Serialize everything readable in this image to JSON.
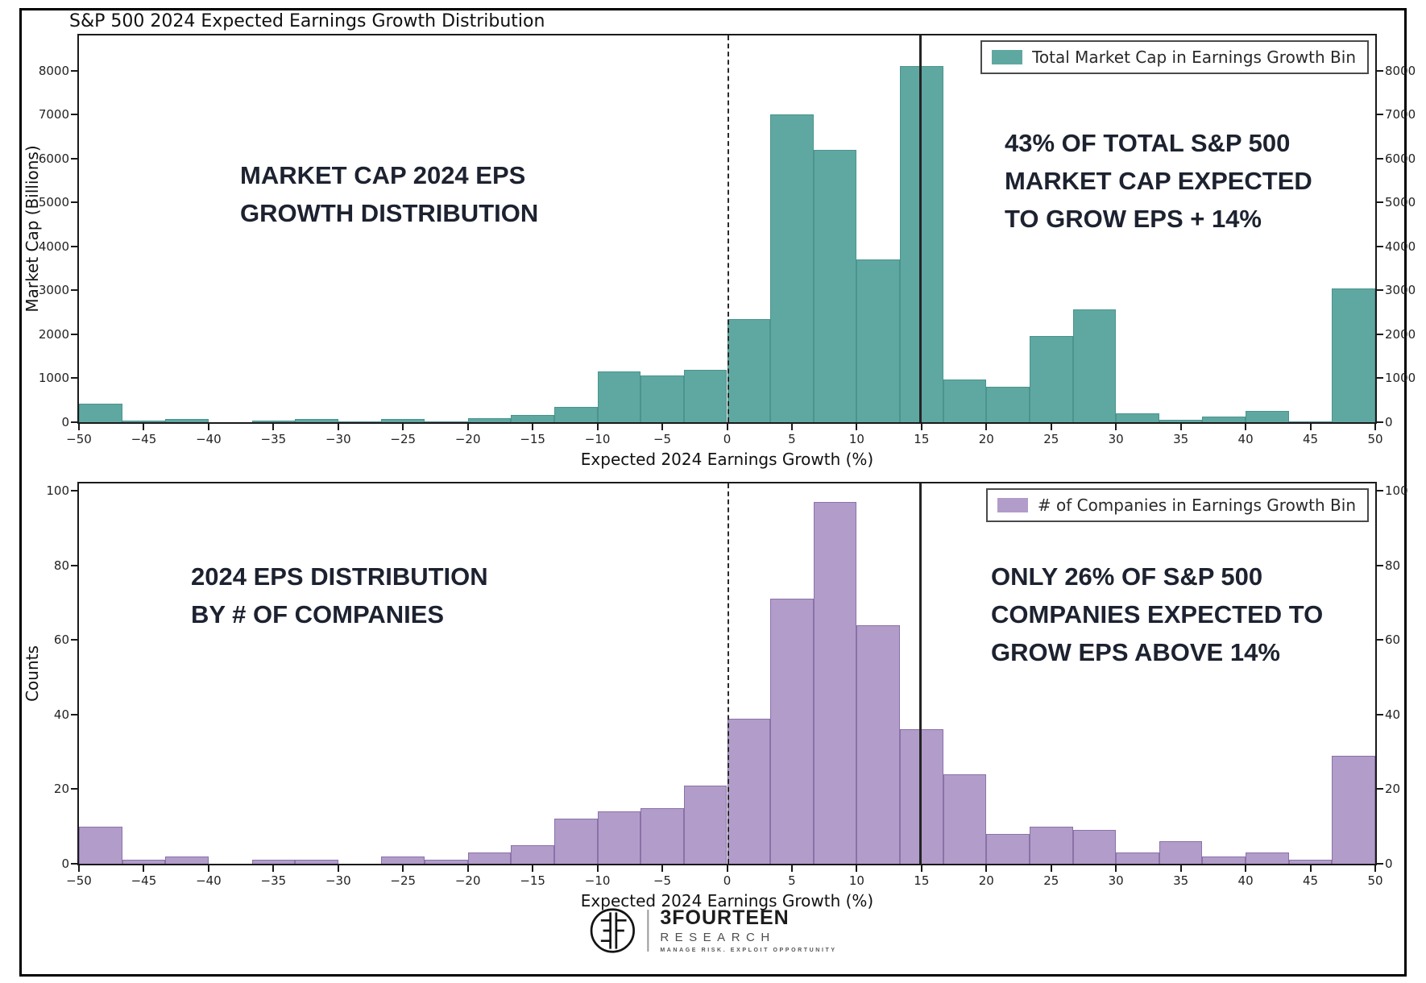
{
  "title": "S&P 500 2024 Expected Earnings Growth Distribution",
  "colors": {
    "teal_fill": "#5fa8a2",
    "teal_edge": "#4a948d",
    "purple_fill": "#b29cca",
    "purple_edge": "#8a72a8",
    "annotation_text": "#1d2230",
    "axis": "#1a1a1a"
  },
  "branding": {
    "logo_monogram": "3F-monogram",
    "logo_main": "3FOURTEEN",
    "logo_sub": "RESEARCH",
    "logo_tagline": "MANAGE RISK. EXPLOIT OPPORTUNITY"
  },
  "chart_data": [
    {
      "type": "bar",
      "subtype": "histogram",
      "title": "Market cap weighted 2024 EPS growth distribution",
      "xlabel": "Expected 2024 Earnings Growth (%)",
      "ylabel": "Market Cap (Billions)",
      "legend": "Total Market Cap in Earnings Growth Bin",
      "legend_position": "upper right",
      "grid": false,
      "bar_color": "#5fa8a2",
      "bar_edge_color": "#4a948d",
      "xlim": [
        -50,
        50
      ],
      "ylim": [
        0,
        8800
      ],
      "xticks": [
        -50,
        -45,
        -40,
        -35,
        -30,
        -25,
        -20,
        -15,
        -10,
        -5,
        0,
        5,
        10,
        15,
        20,
        25,
        30,
        35,
        40,
        45,
        50
      ],
      "yticks": [
        0,
        1000,
        2000,
        3000,
        4000,
        5000,
        6000,
        7000,
        8000
      ],
      "bin_width": 3.333,
      "bin_edges": [
        -50,
        -46.67,
        -43.33,
        -40,
        -36.67,
        -33.33,
        -30,
        -26.67,
        -23.33,
        -20,
        -16.67,
        -13.33,
        -10,
        -6.67,
        -3.33,
        0,
        3.33,
        6.67,
        10,
        13.33,
        16.67,
        20,
        23.33,
        26.67,
        30,
        33.33,
        36.67,
        40,
        43.33,
        46.67,
        50
      ],
      "values": [
        430,
        40,
        70,
        0,
        35,
        65,
        5,
        70,
        15,
        100,
        160,
        350,
        1150,
        1070,
        1200,
        2350,
        7000,
        6200,
        3700,
        8100,
        975,
        800,
        1970,
        2560,
        210,
        60,
        120,
        260,
        20,
        3050
      ],
      "vline_dashed_x": 0,
      "vline_solid_x": 14.8,
      "annotation_left": "MARKET CAP 2024 EPS\nGROWTH DISTRIBUTION",
      "annotation_right": "43% OF TOTAL S&P 500\nMARKET CAP EXPECTED\nTO GROW EPS + 14%"
    },
    {
      "type": "bar",
      "subtype": "histogram",
      "title": "2024 EPS growth distribution by number of companies",
      "xlabel": "Expected 2024 Earnings Growth (%)",
      "ylabel": "Counts",
      "legend": "# of Companies in Earnings Growth Bin",
      "legend_position": "upper right",
      "grid": false,
      "bar_color": "#b29cca",
      "bar_edge_color": "#8a72a8",
      "xlim": [
        -50,
        50
      ],
      "ylim": [
        0,
        102
      ],
      "xticks": [
        -50,
        -45,
        -40,
        -35,
        -30,
        -25,
        -20,
        -15,
        -10,
        -5,
        0,
        5,
        10,
        15,
        20,
        25,
        30,
        35,
        40,
        45,
        50
      ],
      "yticks": [
        0,
        20,
        40,
        60,
        80,
        100
      ],
      "bin_width": 3.333,
      "bin_edges": [
        -50,
        -46.67,
        -43.33,
        -40,
        -36.67,
        -33.33,
        -30,
        -26.67,
        -23.33,
        -20,
        -16.67,
        -13.33,
        -10,
        -6.67,
        -3.33,
        0,
        3.33,
        6.67,
        10,
        13.33,
        16.67,
        20,
        23.33,
        26.67,
        30,
        33.33,
        36.67,
        40,
        43.33,
        46.67,
        50
      ],
      "values": [
        10,
        1,
        2,
        0,
        1,
        1,
        0,
        2,
        1,
        3,
        5,
        12,
        14,
        15,
        21,
        39,
        71,
        97,
        64,
        36,
        24,
        8,
        10,
        9,
        3,
        6,
        2,
        3,
        1,
        29
      ],
      "vline_dashed_x": 0,
      "vline_solid_x": 14.8,
      "annotation_left": "2024 EPS DISTRIBUTION\nBY # OF COMPANIES",
      "annotation_right": "ONLY 26% OF S&P 500\nCOMPANIES EXPECTED TO\nGROW EPS ABOVE 14%"
    }
  ]
}
